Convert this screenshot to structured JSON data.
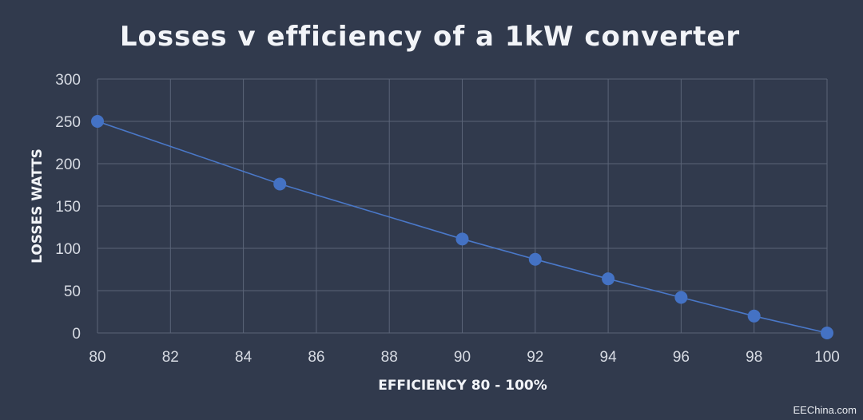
{
  "chart_data": {
    "type": "line",
    "title": "Losses v efficiency of a 1kW converter",
    "xlabel": "EFFICIENCY 80 - 100%",
    "ylabel": "LOSSES WATTS",
    "xlim": [
      80,
      100
    ],
    "ylim": [
      0,
      300
    ],
    "x_ticks": [
      80,
      82,
      84,
      86,
      88,
      90,
      92,
      94,
      96,
      98,
      100
    ],
    "y_ticks": [
      0,
      50,
      100,
      150,
      200,
      250,
      300
    ],
    "grid": true,
    "legend": "none",
    "series": [
      {
        "x": [
          80,
          85,
          90,
          92,
          94,
          96,
          98,
          100
        ],
        "values": [
          250,
          176,
          111,
          87,
          64,
          42,
          20,
          0
        ]
      }
    ],
    "colors": {
      "background": "#313a4d",
      "grid": "#5a6478",
      "line": "#4a78c8",
      "marker": "#4472c4"
    }
  },
  "watermark": "EEChina.com"
}
